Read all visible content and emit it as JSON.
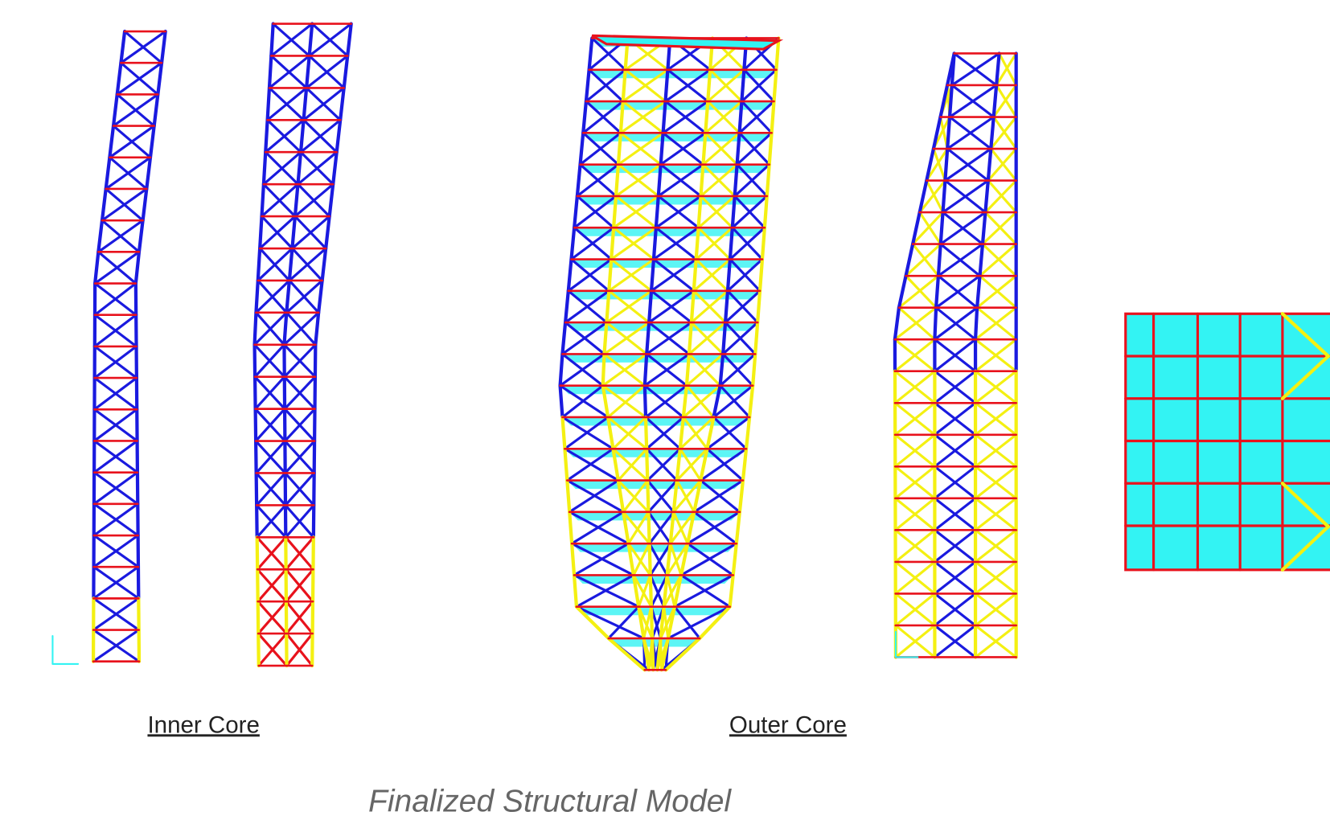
{
  "labels": {
    "inner_core": "Inner Core",
    "outer_core": "Outer Core"
  },
  "caption": "Finalized Structural Model"
}
